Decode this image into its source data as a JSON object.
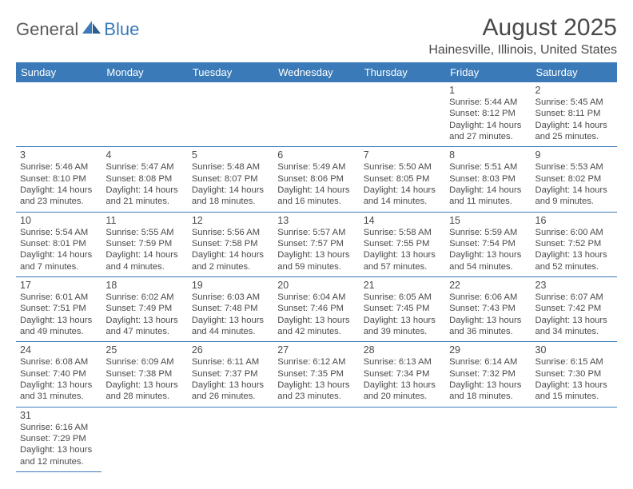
{
  "logo": {
    "general": "General",
    "blue": "Blue"
  },
  "header": {
    "title": "August 2025",
    "location": "Hainesville, Illinois, United States"
  },
  "colors": {
    "header_bg": "#3a7ab8",
    "header_text": "#ffffff",
    "border": "#3a7ab8",
    "body_text": "#4a4a4a",
    "logo_blue": "#3a7ab8",
    "logo_gray": "#5a5a5a",
    "bg": "#ffffff"
  },
  "typography": {
    "title_fontsize": 30,
    "location_fontsize": 16,
    "dayheader_fontsize": 13,
    "daynum_fontsize": 12.5,
    "info_fontsize": 11.2
  },
  "weekdays": [
    "Sunday",
    "Monday",
    "Tuesday",
    "Wednesday",
    "Thursday",
    "Friday",
    "Saturday"
  ],
  "weeks": [
    [
      null,
      null,
      null,
      null,
      null,
      {
        "num": "1",
        "sunrise": "Sunrise: 5:44 AM",
        "sunset": "Sunset: 8:12 PM",
        "daylight": "Daylight: 14 hours and 27 minutes."
      },
      {
        "num": "2",
        "sunrise": "Sunrise: 5:45 AM",
        "sunset": "Sunset: 8:11 PM",
        "daylight": "Daylight: 14 hours and 25 minutes."
      }
    ],
    [
      {
        "num": "3",
        "sunrise": "Sunrise: 5:46 AM",
        "sunset": "Sunset: 8:10 PM",
        "daylight": "Daylight: 14 hours and 23 minutes."
      },
      {
        "num": "4",
        "sunrise": "Sunrise: 5:47 AM",
        "sunset": "Sunset: 8:08 PM",
        "daylight": "Daylight: 14 hours and 21 minutes."
      },
      {
        "num": "5",
        "sunrise": "Sunrise: 5:48 AM",
        "sunset": "Sunset: 8:07 PM",
        "daylight": "Daylight: 14 hours and 18 minutes."
      },
      {
        "num": "6",
        "sunrise": "Sunrise: 5:49 AM",
        "sunset": "Sunset: 8:06 PM",
        "daylight": "Daylight: 14 hours and 16 minutes."
      },
      {
        "num": "7",
        "sunrise": "Sunrise: 5:50 AM",
        "sunset": "Sunset: 8:05 PM",
        "daylight": "Daylight: 14 hours and 14 minutes."
      },
      {
        "num": "8",
        "sunrise": "Sunrise: 5:51 AM",
        "sunset": "Sunset: 8:03 PM",
        "daylight": "Daylight: 14 hours and 11 minutes."
      },
      {
        "num": "9",
        "sunrise": "Sunrise: 5:53 AM",
        "sunset": "Sunset: 8:02 PM",
        "daylight": "Daylight: 14 hours and 9 minutes."
      }
    ],
    [
      {
        "num": "10",
        "sunrise": "Sunrise: 5:54 AM",
        "sunset": "Sunset: 8:01 PM",
        "daylight": "Daylight: 14 hours and 7 minutes."
      },
      {
        "num": "11",
        "sunrise": "Sunrise: 5:55 AM",
        "sunset": "Sunset: 7:59 PM",
        "daylight": "Daylight: 14 hours and 4 minutes."
      },
      {
        "num": "12",
        "sunrise": "Sunrise: 5:56 AM",
        "sunset": "Sunset: 7:58 PM",
        "daylight": "Daylight: 14 hours and 2 minutes."
      },
      {
        "num": "13",
        "sunrise": "Sunrise: 5:57 AM",
        "sunset": "Sunset: 7:57 PM",
        "daylight": "Daylight: 13 hours and 59 minutes."
      },
      {
        "num": "14",
        "sunrise": "Sunrise: 5:58 AM",
        "sunset": "Sunset: 7:55 PM",
        "daylight": "Daylight: 13 hours and 57 minutes."
      },
      {
        "num": "15",
        "sunrise": "Sunrise: 5:59 AM",
        "sunset": "Sunset: 7:54 PM",
        "daylight": "Daylight: 13 hours and 54 minutes."
      },
      {
        "num": "16",
        "sunrise": "Sunrise: 6:00 AM",
        "sunset": "Sunset: 7:52 PM",
        "daylight": "Daylight: 13 hours and 52 minutes."
      }
    ],
    [
      {
        "num": "17",
        "sunrise": "Sunrise: 6:01 AM",
        "sunset": "Sunset: 7:51 PM",
        "daylight": "Daylight: 13 hours and 49 minutes."
      },
      {
        "num": "18",
        "sunrise": "Sunrise: 6:02 AM",
        "sunset": "Sunset: 7:49 PM",
        "daylight": "Daylight: 13 hours and 47 minutes."
      },
      {
        "num": "19",
        "sunrise": "Sunrise: 6:03 AM",
        "sunset": "Sunset: 7:48 PM",
        "daylight": "Daylight: 13 hours and 44 minutes."
      },
      {
        "num": "20",
        "sunrise": "Sunrise: 6:04 AM",
        "sunset": "Sunset: 7:46 PM",
        "daylight": "Daylight: 13 hours and 42 minutes."
      },
      {
        "num": "21",
        "sunrise": "Sunrise: 6:05 AM",
        "sunset": "Sunset: 7:45 PM",
        "daylight": "Daylight: 13 hours and 39 minutes."
      },
      {
        "num": "22",
        "sunrise": "Sunrise: 6:06 AM",
        "sunset": "Sunset: 7:43 PM",
        "daylight": "Daylight: 13 hours and 36 minutes."
      },
      {
        "num": "23",
        "sunrise": "Sunrise: 6:07 AM",
        "sunset": "Sunset: 7:42 PM",
        "daylight": "Daylight: 13 hours and 34 minutes."
      }
    ],
    [
      {
        "num": "24",
        "sunrise": "Sunrise: 6:08 AM",
        "sunset": "Sunset: 7:40 PM",
        "daylight": "Daylight: 13 hours and 31 minutes."
      },
      {
        "num": "25",
        "sunrise": "Sunrise: 6:09 AM",
        "sunset": "Sunset: 7:38 PM",
        "daylight": "Daylight: 13 hours and 28 minutes."
      },
      {
        "num": "26",
        "sunrise": "Sunrise: 6:11 AM",
        "sunset": "Sunset: 7:37 PM",
        "daylight": "Daylight: 13 hours and 26 minutes."
      },
      {
        "num": "27",
        "sunrise": "Sunrise: 6:12 AM",
        "sunset": "Sunset: 7:35 PM",
        "daylight": "Daylight: 13 hours and 23 minutes."
      },
      {
        "num": "28",
        "sunrise": "Sunrise: 6:13 AM",
        "sunset": "Sunset: 7:34 PM",
        "daylight": "Daylight: 13 hours and 20 minutes."
      },
      {
        "num": "29",
        "sunrise": "Sunrise: 6:14 AM",
        "sunset": "Sunset: 7:32 PM",
        "daylight": "Daylight: 13 hours and 18 minutes."
      },
      {
        "num": "30",
        "sunrise": "Sunrise: 6:15 AM",
        "sunset": "Sunset: 7:30 PM",
        "daylight": "Daylight: 13 hours and 15 minutes."
      }
    ],
    [
      {
        "num": "31",
        "sunrise": "Sunrise: 6:16 AM",
        "sunset": "Sunset: 7:29 PM",
        "daylight": "Daylight: 13 hours and 12 minutes."
      },
      null,
      null,
      null,
      null,
      null,
      null
    ]
  ]
}
